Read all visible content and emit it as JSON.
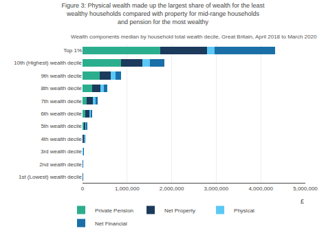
{
  "chart_data": {
    "type": "bar",
    "orientation": "horizontal",
    "stacked": true,
    "title": "Figure 3: Physical wealth made up the largest share of wealth for the least\nwealthy households compared with property for mid-range households\nand pension for the most wealthy",
    "subtitle": "Wealth components median by household total wealth decile, Great Britain, April 2018 to March 2020",
    "xlabel": "£",
    "categories": [
      "Top 1%",
      "10th (Highest) wealth decile",
      "9th wealth decile",
      "8th wealth decile",
      "7th wealth decile",
      "6th wealth decile",
      "5th wealth decile",
      "4th wealth decile",
      "3rd wealth decile",
      "2nd wealth decile",
      "1st (Lowest) wealth decile"
    ],
    "series": [
      {
        "name": "Private Pension",
        "color": "#2BAE8E",
        "values": [
          1750000,
          870000,
          380000,
          210000,
          95000,
          55000,
          28000,
          14000,
          5000,
          2500,
          800
        ]
      },
      {
        "name": "Net Property",
        "color": "#1B3A5C",
        "values": [
          1050000,
          480000,
          260000,
          190000,
          140000,
          95000,
          38000,
          25000,
          8000,
          1500,
          400
        ]
      },
      {
        "name": "Physical",
        "color": "#5BC8F5",
        "values": [
          170000,
          155000,
          95000,
          75000,
          55000,
          38000,
          18000,
          9000,
          4000,
          1500,
          300
        ]
      },
      {
        "name": "Net Financial",
        "color": "#1A6FA8",
        "values": [
          1350000,
          330000,
          125000,
          85000,
          48000,
          32000,
          18000,
          9000,
          4000,
          1500,
          300
        ]
      }
    ],
    "xlim": [
      0,
      5000000
    ],
    "xticks": [
      0,
      {
        "value": 1000000,
        "label": "1,000,000"
      },
      {
        "value": 2000000,
        "label": "2,000,000"
      },
      {
        "value": 3000000,
        "label": "3,000,000"
      },
      {
        "value": 4000000,
        "label": "4,000,000"
      },
      {
        "value": 5000000,
        "label": "5,000,000"
      }
    ],
    "grid": true,
    "legend": "bottom"
  }
}
